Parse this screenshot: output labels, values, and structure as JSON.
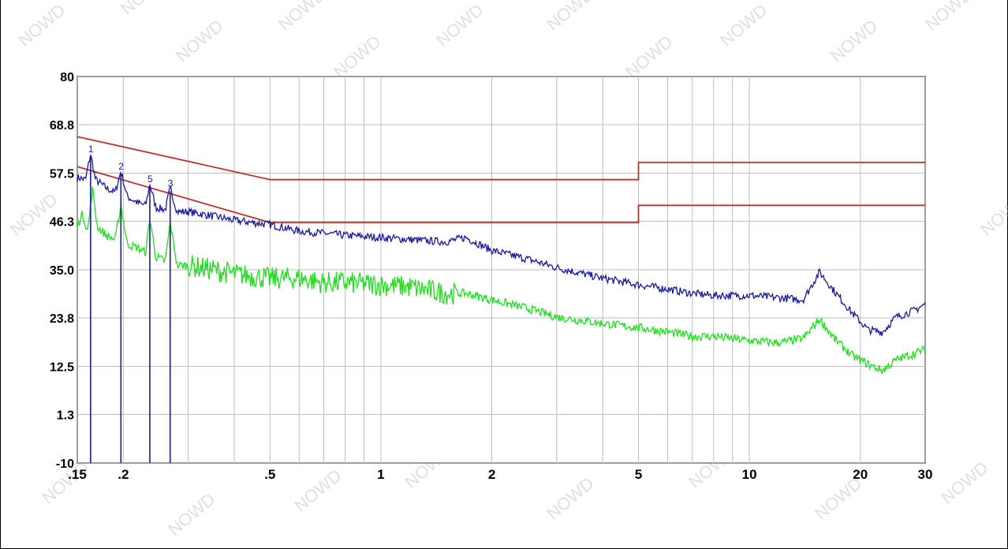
{
  "chart_data": {
    "type": "line",
    "x_scale": "log",
    "xlim": [
      0.15,
      30
    ],
    "ylim": [
      -10,
      80
    ],
    "grid": true,
    "x_tick_labels": [
      {
        "value": 0.15,
        "label": ".15"
      },
      {
        "value": 0.2,
        "label": ".2"
      },
      {
        "value": 0.5,
        "label": ".5"
      },
      {
        "value": 1,
        "label": "1"
      },
      {
        "value": 2,
        "label": "2"
      },
      {
        "value": 5,
        "label": "5"
      },
      {
        "value": 10,
        "label": "10"
      },
      {
        "value": 20,
        "label": "20"
      },
      {
        "value": 30,
        "label": "30"
      }
    ],
    "x_minor_grid": [
      0.3,
      0.4,
      0.6,
      0.7,
      0.8,
      0.9,
      3,
      4,
      6,
      7,
      8,
      9
    ],
    "y_tick_labels": [
      {
        "value": 80,
        "label": "80"
      },
      {
        "value": 68.8,
        "label": "68.8"
      },
      {
        "value": 57.5,
        "label": "57.5"
      },
      {
        "value": 46.3,
        "label": "46.3"
      },
      {
        "value": 35.0,
        "label": "35.0"
      },
      {
        "value": 23.8,
        "label": "23.8"
      },
      {
        "value": 12.5,
        "label": "12.5"
      },
      {
        "value": 1.3,
        "label": "1.3"
      },
      {
        "value": -10,
        "label": "-10"
      }
    ],
    "series": [
      {
        "color": "#c03030",
        "points": [
          [
            0.15,
            66
          ],
          [
            0.5,
            56
          ],
          [
            5,
            56
          ],
          [
            5,
            60
          ],
          [
            30,
            60
          ]
        ]
      },
      {
        "color": "#c03030",
        "points": [
          [
            0.15,
            59
          ],
          [
            0.5,
            46
          ],
          [
            5,
            46
          ],
          [
            5,
            50
          ],
          [
            30,
            50
          ]
        ]
      },
      {
        "color": "#1a1aa0",
        "points": [
          [
            0.15,
            56.5
          ],
          [
            0.158,
            56
          ],
          [
            0.163,
            62
          ],
          [
            0.168,
            56
          ],
          [
            0.18,
            54
          ],
          [
            0.19,
            53
          ],
          [
            0.197,
            58
          ],
          [
            0.205,
            52
          ],
          [
            0.22,
            50.5
          ],
          [
            0.23,
            50
          ],
          [
            0.236,
            55
          ],
          [
            0.245,
            49.5
          ],
          [
            0.26,
            49
          ],
          [
            0.268,
            54
          ],
          [
            0.28,
            48.5
          ],
          [
            0.3,
            48.5
          ],
          [
            0.35,
            47.5
          ],
          [
            0.4,
            46.5
          ],
          [
            0.5,
            45.5
          ],
          [
            0.6,
            44
          ],
          [
            0.7,
            43.5
          ],
          [
            0.8,
            43
          ],
          [
            1,
            42.5
          ],
          [
            1.2,
            42
          ],
          [
            1.5,
            41.5
          ],
          [
            1.7,
            42.5
          ],
          [
            2,
            39.5
          ],
          [
            2.5,
            37.5
          ],
          [
            3,
            35.5
          ],
          [
            4,
            33
          ],
          [
            5,
            31.5
          ],
          [
            6,
            30.5
          ],
          [
            7,
            29.5
          ],
          [
            8,
            29
          ],
          [
            10,
            29
          ],
          [
            12,
            28.5
          ],
          [
            14,
            28
          ],
          [
            15.5,
            34.5
          ],
          [
            17,
            30
          ],
          [
            19,
            25
          ],
          [
            21,
            21
          ],
          [
            23,
            20.5
          ],
          [
            25,
            24
          ],
          [
            28,
            25.5
          ],
          [
            30,
            27
          ]
        ]
      },
      {
        "color": "#22dd22",
        "points": [
          [
            0.15,
            45.5
          ],
          [
            0.155,
            48
          ],
          [
            0.16,
            44
          ],
          [
            0.165,
            54
          ],
          [
            0.17,
            45
          ],
          [
            0.18,
            43
          ],
          [
            0.19,
            42
          ],
          [
            0.197,
            50
          ],
          [
            0.205,
            41
          ],
          [
            0.22,
            40
          ],
          [
            0.23,
            39
          ],
          [
            0.236,
            47
          ],
          [
            0.245,
            38
          ],
          [
            0.26,
            37
          ],
          [
            0.268,
            46
          ],
          [
            0.28,
            36
          ],
          [
            0.3,
            36
          ],
          [
            0.35,
            35
          ],
          [
            0.4,
            34
          ],
          [
            0.5,
            33
          ],
          [
            0.6,
            33
          ],
          [
            0.7,
            32
          ],
          [
            0.8,
            32
          ],
          [
            1,
            31.5
          ],
          [
            1.2,
            31
          ],
          [
            1.5,
            29.5
          ],
          [
            1.7,
            29.5
          ],
          [
            2,
            28
          ],
          [
            2.5,
            26
          ],
          [
            3,
            24
          ],
          [
            4,
            22.5
          ],
          [
            5,
            21.5
          ],
          [
            6,
            20.5
          ],
          [
            7,
            19.5
          ],
          [
            8,
            19.5
          ],
          [
            10,
            18.5
          ],
          [
            12,
            18
          ],
          [
            14,
            19
          ],
          [
            15.5,
            23.5
          ],
          [
            17,
            19
          ],
          [
            19,
            15
          ],
          [
            21,
            13
          ],
          [
            23,
            11.5
          ],
          [
            25,
            14
          ],
          [
            28,
            15.5
          ],
          [
            30,
            16.5
          ]
        ]
      }
    ],
    "peak_markers": [
      {
        "label": "1",
        "x": 0.163,
        "y": 62
      },
      {
        "label": "2",
        "x": 0.197,
        "y": 58
      },
      {
        "label": "5",
        "x": 0.236,
        "y": 55
      },
      {
        "label": "3",
        "x": 0.268,
        "y": 54
      }
    ],
    "peak_lines_to_y": -10
  },
  "watermark": "NOWD"
}
